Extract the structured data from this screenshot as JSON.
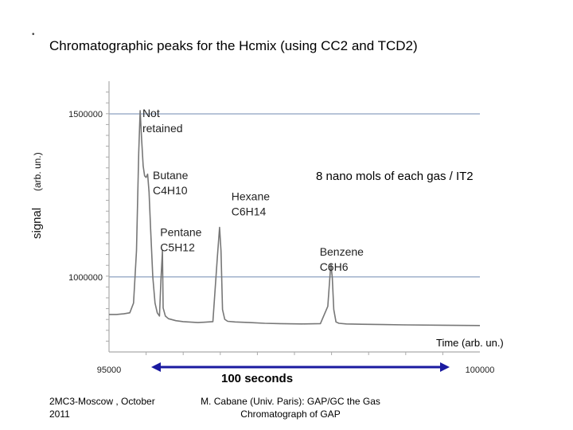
{
  "title": "Chromatographic peaks for the Hcmix (using CC2 and TCD2)",
  "bullet": "•",
  "note": "8 nano mols of each gas / IT2",
  "duration_label": "100 seconds",
  "footer": {
    "left": "2MC3-Moscow , October 2011",
    "center": "M. Cabane (Univ. Paris): GAP/GC the Gas Chromatograph of GAP"
  },
  "colors": {
    "trace": "#777777",
    "gridline": "#8ca0c0",
    "axis": "#aaaaaa",
    "arrow": "#1a1aa0"
  },
  "chart_data": {
    "type": "line",
    "xlabel": "Time (arb. un.)",
    "ylabel": "signal",
    "ylabel_unit": "(arb. un.)",
    "xlim": [
      95000,
      100000
    ],
    "ylim": [
      770000,
      1600000
    ],
    "x_ticks": [
      95000,
      100000
    ],
    "x_tick_labels": [
      "95000",
      "100000"
    ],
    "y_ticks": [
      1000000,
      1500000
    ],
    "y_tick_labels": [
      "1000000",
      "1500000"
    ],
    "grid_y": true,
    "series": [
      {
        "x": [
          95000,
          95100,
          95200,
          95280,
          95330,
          95370,
          95400,
          95420,
          95440,
          95460,
          95480,
          95500,
          95520,
          95540,
          95560,
          95590,
          95620,
          95650,
          95680,
          95700,
          95720,
          95730,
          95760,
          95800,
          95900,
          96000,
          96200,
          96400,
          96460,
          96490,
          96510,
          96530,
          96560,
          96600,
          96700,
          96900,
          97100,
          97300,
          97600,
          97850,
          97950,
          97990,
          98010,
          98030,
          98060,
          98100,
          98200,
          98400,
          98700,
          99000,
          99500,
          100000
        ],
        "y": [
          885000,
          885000,
          887000,
          890000,
          920000,
          1080000,
          1380000,
          1510000,
          1420000,
          1340000,
          1310000,
          1305000,
          1315000,
          1260000,
          1150000,
          1000000,
          920000,
          890000,
          880000,
          990000,
          1080000,
          905000,
          880000,
          872000,
          866000,
          863000,
          860000,
          863000,
          1060000,
          1152000,
          1080000,
          900000,
          870000,
          864000,
          862000,
          860000,
          858000,
          857000,
          856000,
          857000,
          910000,
          1040000,
          1000000,
          900000,
          862000,
          858000,
          856000,
          855000,
          854000,
          853000,
          852000,
          851000
        ]
      }
    ],
    "annotations": [
      {
        "text": "Not retained",
        "lines": [
          "Not",
          "retained"
        ],
        "x": 95450,
        "y": 1490000
      },
      {
        "text": "Butane C4H10",
        "lines": [
          "Butane",
          "C4H10"
        ],
        "x": 95590,
        "y": 1300000
      },
      {
        "text": "Pentane C5H12",
        "lines": [
          "Pentane",
          "C5H12"
        ],
        "x": 95690,
        "y": 1125000
      },
      {
        "text": "Hexane C6H14",
        "lines": [
          "Hexane",
          "C6H14"
        ],
        "x": 96650,
        "y": 1235000
      },
      {
        "text": "Benzene C6H6",
        "lines": [
          "Benzene",
          "C6H6"
        ],
        "x": 97840,
        "y": 1065000
      }
    ]
  }
}
